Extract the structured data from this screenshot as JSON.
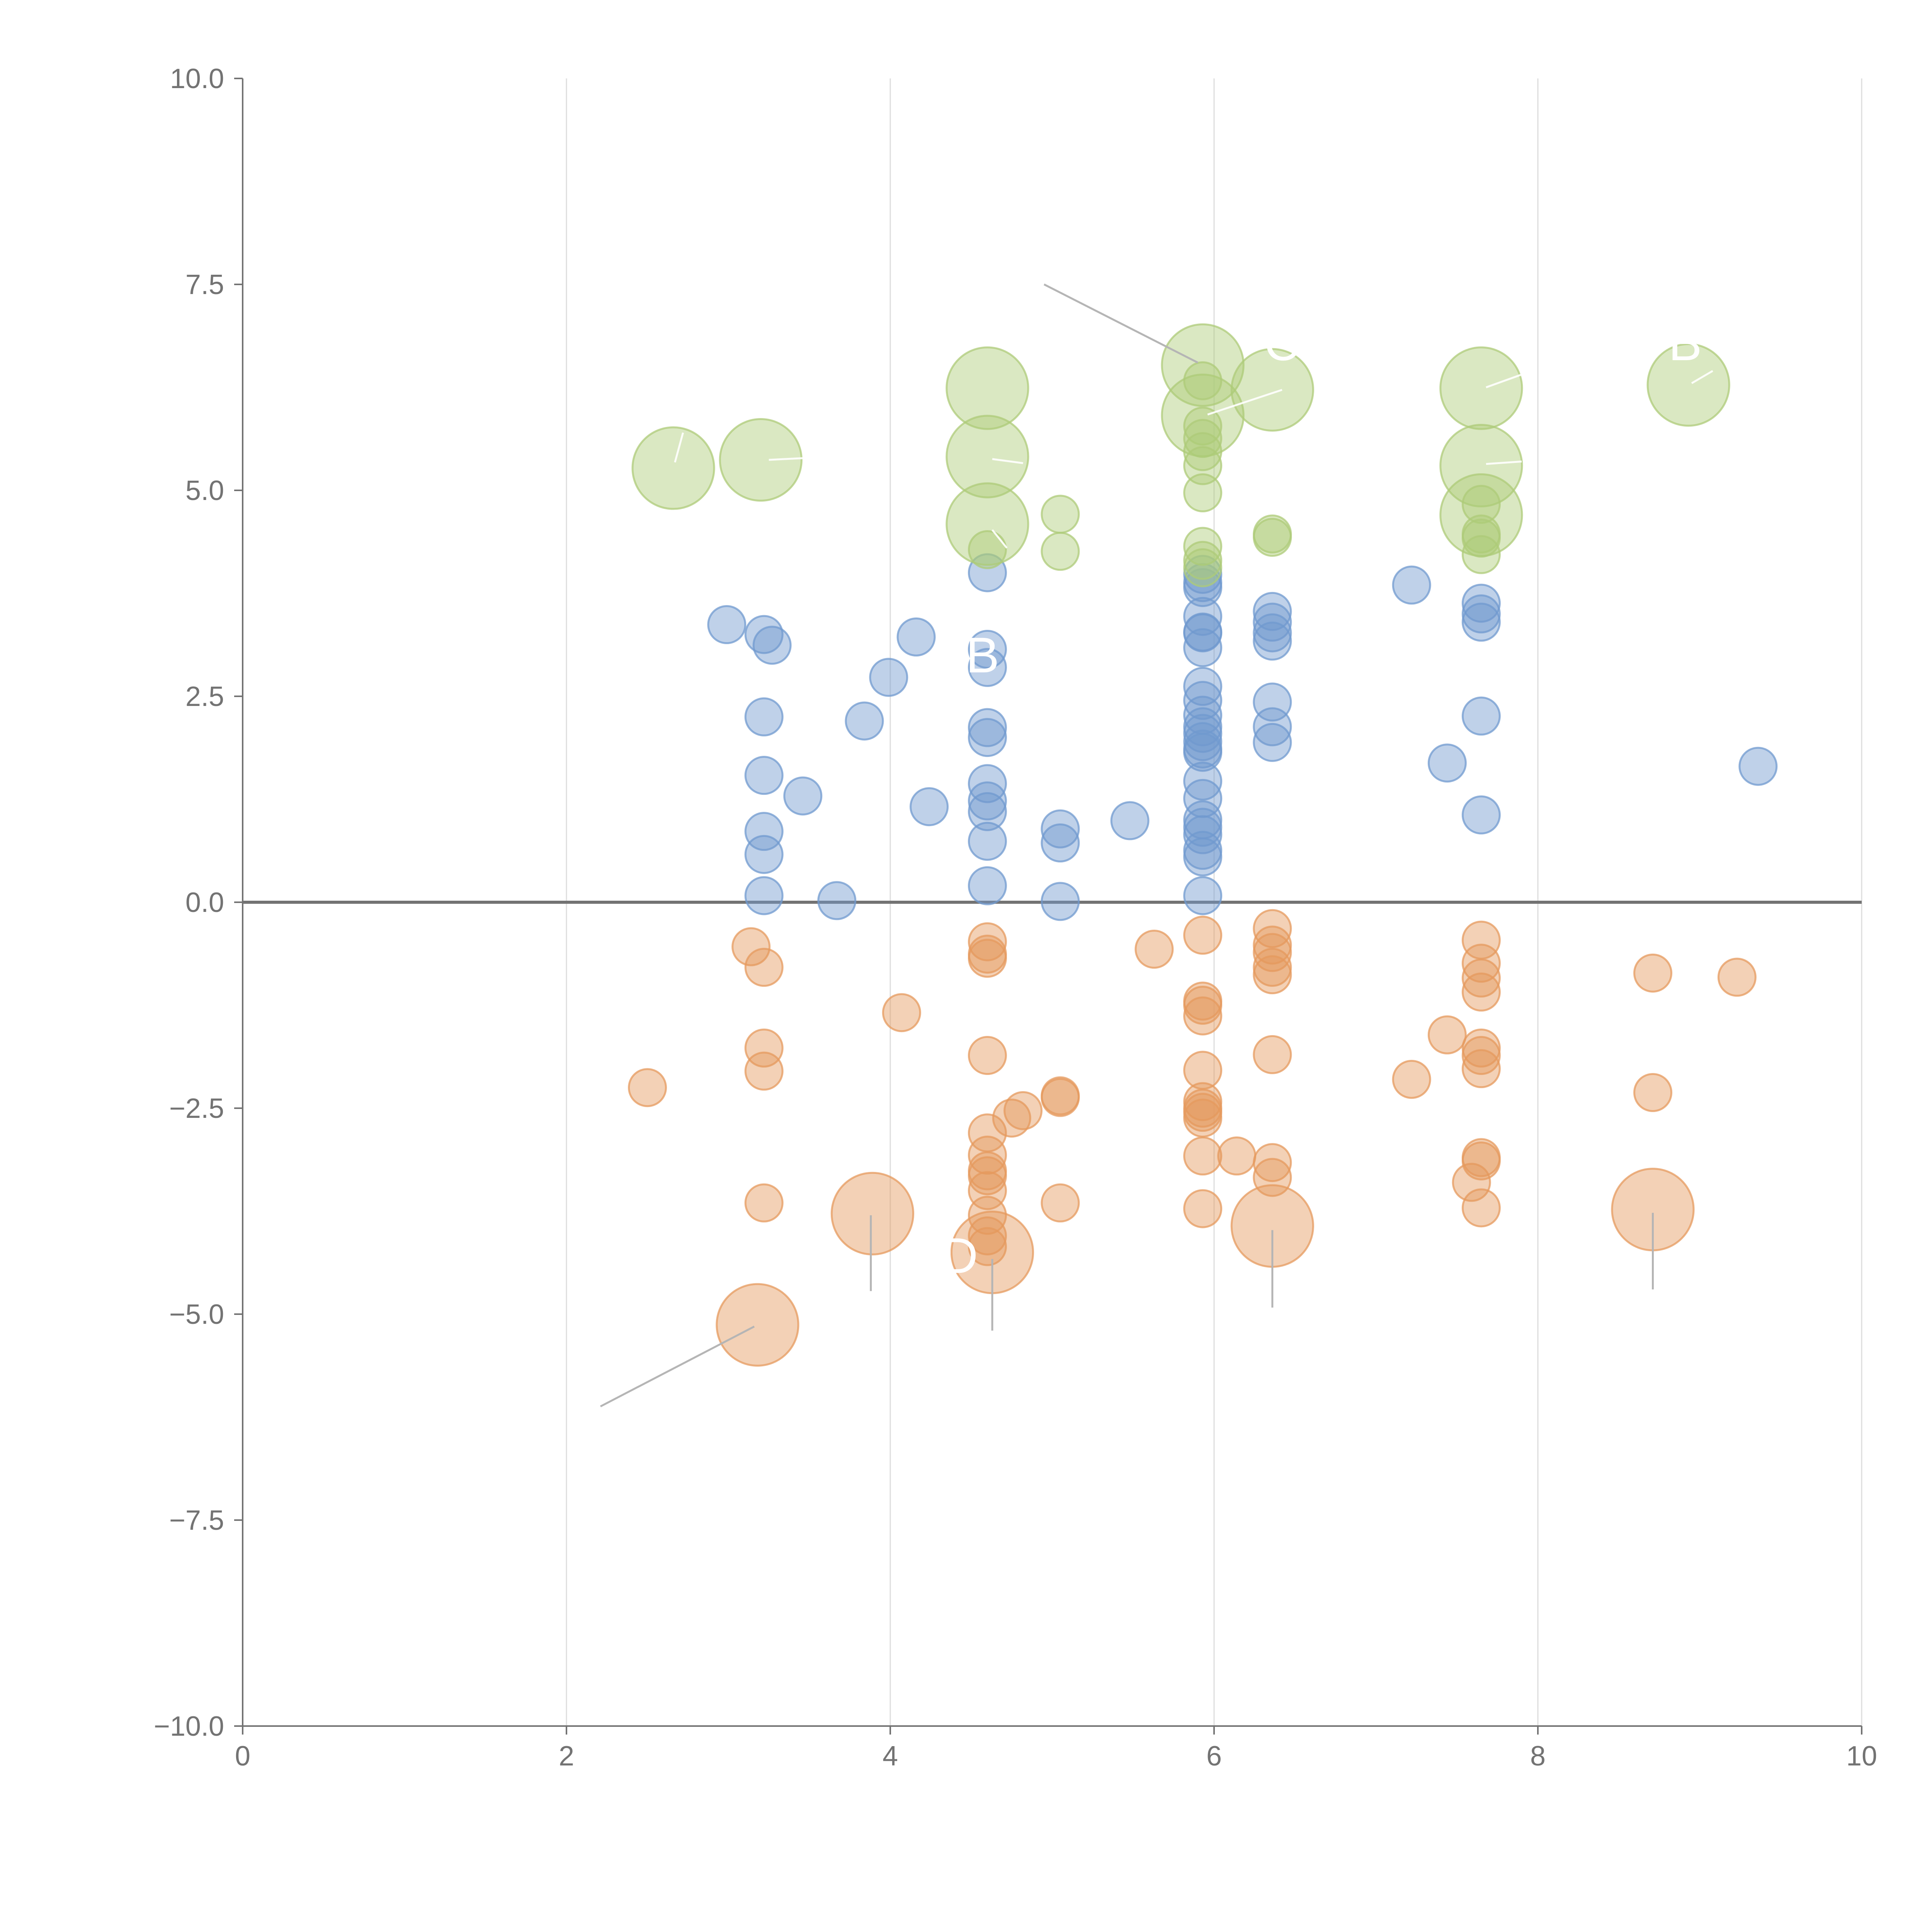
{
  "chart_data": {
    "type": "scatter",
    "title": "",
    "xlabel": "",
    "ylabel": "",
    "xlim": [
      0,
      10
    ],
    "ylim": [
      -10,
      10
    ],
    "x_ticks": [
      0,
      2,
      4,
      6,
      8,
      10
    ],
    "y_ticks": [
      10,
      7.5,
      5,
      2.5,
      0,
      -2.5,
      -5,
      -7.5,
      -10
    ],
    "x_tick_labels": [
      "0",
      "2",
      "4",
      "6",
      "8",
      "10"
    ],
    "y_tick_labels": [
      "10.0",
      "7.5",
      "5.0",
      "2.5",
      "0.0",
      "−2.5",
      "−5.0",
      "−7.5",
      "−10.0"
    ],
    "grid": "vertical lines at x ticks",
    "reference_line_y": 0,
    "colors": {
      "blue": "#7099cf",
      "orange": "#e59a5e",
      "green": "#aecb78",
      "axis": "#737373",
      "grid": "#dddddd",
      "leader": "#b5b5b5"
    },
    "series": [
      {
        "name": "blue",
        "color": "#7099cf",
        "points": [
          {
            "x": 2.99,
            "y": 3.37,
            "r": 1
          },
          {
            "x": 3.22,
            "y": 3.25,
            "r": 1
          },
          {
            "x": 3.27,
            "y": 3.12,
            "r": 1
          },
          {
            "x": 3.22,
            "y": 2.25,
            "r": 1
          },
          {
            "x": 3.22,
            "y": 1.54,
            "r": 1
          },
          {
            "x": 3.22,
            "y": 0.86,
            "r": 1
          },
          {
            "x": 3.22,
            "y": 0.58,
            "r": 1
          },
          {
            "x": 3.22,
            "y": 0.08,
            "r": 1
          },
          {
            "x": 3.46,
            "y": 1.29,
            "r": 1
          },
          {
            "x": 3.67,
            "y": 0.02,
            "r": 1
          },
          {
            "x": 3.84,
            "y": 2.2,
            "r": 1
          },
          {
            "x": 3.99,
            "y": 2.73,
            "r": 1
          },
          {
            "x": 4.16,
            "y": 3.22,
            "r": 1
          },
          {
            "x": 4.24,
            "y": 1.16,
            "r": 1
          },
          {
            "x": 4.6,
            "y": 4.0,
            "r": 1
          },
          {
            "x": 4.6,
            "y": 3.07,
            "r": 1
          },
          {
            "x": 4.6,
            "y": 2.85,
            "r": 1
          },
          {
            "x": 4.6,
            "y": 2.12,
            "r": 1
          },
          {
            "x": 4.6,
            "y": 2.0,
            "r": 1
          },
          {
            "x": 4.6,
            "y": 1.44,
            "r": 1
          },
          {
            "x": 4.6,
            "y": 1.23,
            "r": 1
          },
          {
            "x": 4.6,
            "y": 1.1,
            "r": 1
          },
          {
            "x": 4.6,
            "y": 0.74,
            "r": 1
          },
          {
            "x": 4.6,
            "y": 0.2,
            "r": 1
          },
          {
            "x": 5.05,
            "y": 0.89,
            "r": 1
          },
          {
            "x": 5.05,
            "y": 0.72,
            "r": 1
          },
          {
            "x": 5.05,
            "y": 0.01,
            "r": 1
          },
          {
            "x": 5.48,
            "y": 0.99,
            "r": 1
          },
          {
            "x": 5.93,
            "y": 3.98,
            "r": 1
          },
          {
            "x": 5.93,
            "y": 3.88,
            "r": 1
          },
          {
            "x": 5.93,
            "y": 3.82,
            "r": 1
          },
          {
            "x": 5.93,
            "y": 3.47,
            "r": 1
          },
          {
            "x": 5.93,
            "y": 3.28,
            "r": 1
          },
          {
            "x": 5.93,
            "y": 3.27,
            "r": 1
          },
          {
            "x": 5.93,
            "y": 3.09,
            "r": 1
          },
          {
            "x": 5.93,
            "y": 2.62,
            "r": 1
          },
          {
            "x": 5.93,
            "y": 2.45,
            "r": 1
          },
          {
            "x": 5.93,
            "y": 2.27,
            "r": 1
          },
          {
            "x": 5.93,
            "y": 2.13,
            "r": 1
          },
          {
            "x": 5.93,
            "y": 2.05,
            "r": 1
          },
          {
            "x": 5.93,
            "y": 1.95,
            "r": 1
          },
          {
            "x": 5.93,
            "y": 1.86,
            "r": 1
          },
          {
            "x": 5.93,
            "y": 1.82,
            "r": 1
          },
          {
            "x": 5.93,
            "y": 1.47,
            "r": 1
          },
          {
            "x": 5.93,
            "y": 1.26,
            "r": 1
          },
          {
            "x": 5.93,
            "y": 1.0,
            "r": 1
          },
          {
            "x": 5.93,
            "y": 0.91,
            "r": 1
          },
          {
            "x": 5.93,
            "y": 0.82,
            "r": 1
          },
          {
            "x": 5.93,
            "y": 0.63,
            "r": 1
          },
          {
            "x": 5.93,
            "y": 0.55,
            "r": 1
          },
          {
            "x": 5.93,
            "y": 0.08,
            "r": 1
          },
          {
            "x": 6.36,
            "y": 3.53,
            "r": 1
          },
          {
            "x": 6.36,
            "y": 3.4,
            "r": 1
          },
          {
            "x": 6.36,
            "y": 3.27,
            "r": 1
          },
          {
            "x": 6.36,
            "y": 3.17,
            "r": 1
          },
          {
            "x": 6.36,
            "y": 2.43,
            "r": 1
          },
          {
            "x": 6.36,
            "y": 2.13,
            "r": 1
          },
          {
            "x": 6.36,
            "y": 1.94,
            "r": 1
          },
          {
            "x": 7.22,
            "y": 3.85,
            "r": 1
          },
          {
            "x": 7.44,
            "y": 1.69,
            "r": 1
          },
          {
            "x": 7.65,
            "y": 3.63,
            "r": 1
          },
          {
            "x": 7.65,
            "y": 3.5,
            "r": 1
          },
          {
            "x": 7.65,
            "y": 3.4,
            "r": 1
          },
          {
            "x": 7.65,
            "y": 2.26,
            "r": 1
          },
          {
            "x": 7.65,
            "y": 1.06,
            "r": 1
          },
          {
            "x": 9.36,
            "y": 1.65,
            "r": 1
          }
        ]
      },
      {
        "name": "orange",
        "color": "#e59a5e",
        "points": [
          {
            "x": 2.5,
            "y": -2.25,
            "r": 1
          },
          {
            "x": 3.14,
            "y": -0.54,
            "r": 1
          },
          {
            "x": 3.22,
            "y": -0.79,
            "r": 1
          },
          {
            "x": 3.22,
            "y": -1.77,
            "r": 1
          },
          {
            "x": 3.22,
            "y": -2.05,
            "r": 1
          },
          {
            "x": 3.22,
            "y": -3.65,
            "r": 1
          },
          {
            "x": 3.18,
            "y": -5.13,
            "r": 2.2
          },
          {
            "x": 3.89,
            "y": -3.78,
            "r": 2.2
          },
          {
            "x": 4.07,
            "y": -1.34,
            "r": 1
          },
          {
            "x": 4.6,
            "y": -0.48,
            "r": 1
          },
          {
            "x": 4.6,
            "y": -0.63,
            "r": 1
          },
          {
            "x": 4.6,
            "y": -0.68,
            "r": 1
          },
          {
            "x": 4.6,
            "y": -1.86,
            "r": 1
          },
          {
            "x": 4.6,
            "y": -2.8,
            "r": 1
          },
          {
            "x": 4.6,
            "y": -3.07,
            "r": 1
          },
          {
            "x": 4.6,
            "y": -3.26,
            "r": 1
          },
          {
            "x": 4.6,
            "y": -3.32,
            "r": 1
          },
          {
            "x": 4.6,
            "y": -3.5,
            "r": 1
          },
          {
            "x": 4.6,
            "y": -3.8,
            "r": 1
          },
          {
            "x": 4.6,
            "y": -4.05,
            "r": 1
          },
          {
            "x": 4.6,
            "y": -4.18,
            "r": 1
          },
          {
            "x": 4.63,
            "y": -4.25,
            "r": 2.2
          },
          {
            "x": 4.75,
            "y": -2.62,
            "r": 1
          },
          {
            "x": 4.82,
            "y": -2.53,
            "r": 1
          },
          {
            "x": 5.05,
            "y": -2.35,
            "r": 1
          },
          {
            "x": 5.05,
            "y": -2.37,
            "r": 1
          },
          {
            "x": 5.05,
            "y": -3.65,
            "r": 1
          },
          {
            "x": 5.63,
            "y": -0.57,
            "r": 1
          },
          {
            "x": 5.93,
            "y": -0.4,
            "r": 1
          },
          {
            "x": 5.93,
            "y": -1.2,
            "r": 1
          },
          {
            "x": 5.93,
            "y": -1.25,
            "r": 1
          },
          {
            "x": 5.93,
            "y": -1.38,
            "r": 1
          },
          {
            "x": 5.93,
            "y": -2.04,
            "r": 1
          },
          {
            "x": 5.93,
            "y": -2.42,
            "r": 1
          },
          {
            "x": 5.93,
            "y": -2.5,
            "r": 1
          },
          {
            "x": 5.93,
            "y": -2.55,
            "r": 1
          },
          {
            "x": 5.93,
            "y": -2.62,
            "r": 1
          },
          {
            "x": 5.93,
            "y": -3.08,
            "r": 1
          },
          {
            "x": 5.93,
            "y": -3.72,
            "r": 1
          },
          {
            "x": 6.14,
            "y": -3.08,
            "r": 1
          },
          {
            "x": 6.36,
            "y": -0.32,
            "r": 1
          },
          {
            "x": 6.36,
            "y": -0.52,
            "r": 1
          },
          {
            "x": 6.36,
            "y": -0.61,
            "r": 1
          },
          {
            "x": 6.36,
            "y": -0.79,
            "r": 1
          },
          {
            "x": 6.36,
            "y": -0.88,
            "r": 1
          },
          {
            "x": 6.36,
            "y": -1.85,
            "r": 1
          },
          {
            "x": 6.36,
            "y": -3.16,
            "r": 1
          },
          {
            "x": 6.36,
            "y": -3.34,
            "r": 1
          },
          {
            "x": 6.36,
            "y": -3.93,
            "r": 2.2
          },
          {
            "x": 7.22,
            "y": -2.15,
            "r": 1
          },
          {
            "x": 7.44,
            "y": -1.61,
            "r": 1
          },
          {
            "x": 7.59,
            "y": -3.4,
            "r": 1
          },
          {
            "x": 7.65,
            "y": -0.46,
            "r": 1
          },
          {
            "x": 7.65,
            "y": -0.74,
            "r": 1
          },
          {
            "x": 7.65,
            "y": -0.92,
            "r": 1
          },
          {
            "x": 7.65,
            "y": -1.09,
            "r": 1
          },
          {
            "x": 7.65,
            "y": -1.77,
            "r": 1
          },
          {
            "x": 7.65,
            "y": -1.86,
            "r": 1
          },
          {
            "x": 7.65,
            "y": -2.02,
            "r": 1
          },
          {
            "x": 7.65,
            "y": -3.1,
            "r": 1
          },
          {
            "x": 7.65,
            "y": -3.14,
            "r": 1
          },
          {
            "x": 7.65,
            "y": -3.71,
            "r": 1
          },
          {
            "x": 8.71,
            "y": -0.86,
            "r": 1
          },
          {
            "x": 8.71,
            "y": -2.31,
            "r": 1
          },
          {
            "x": 8.71,
            "y": -3.73,
            "r": 2.2
          },
          {
            "x": 9.23,
            "y": -0.91,
            "r": 1
          }
        ]
      },
      {
        "name": "green",
        "color": "#aecb78",
        "points": [
          {
            "x": 2.66,
            "y": 5.27,
            "r": 2.2
          },
          {
            "x": 3.2,
            "y": 5.37,
            "r": 2.2
          },
          {
            "x": 4.6,
            "y": 6.24,
            "r": 2.2
          },
          {
            "x": 4.6,
            "y": 5.41,
            "r": 2.2
          },
          {
            "x": 4.6,
            "y": 4.59,
            "r": 2.2
          },
          {
            "x": 4.6,
            "y": 4.28,
            "r": 1
          },
          {
            "x": 5.05,
            "y": 4.71,
            "r": 1
          },
          {
            "x": 5.05,
            "y": 4.26,
            "r": 1
          },
          {
            "x": 5.93,
            "y": 6.52,
            "r": 2.2
          },
          {
            "x": 5.93,
            "y": 5.91,
            "r": 2.2
          },
          {
            "x": 5.93,
            "y": 6.33,
            "r": 1
          },
          {
            "x": 5.93,
            "y": 5.78,
            "r": 1
          },
          {
            "x": 5.93,
            "y": 5.63,
            "r": 1
          },
          {
            "x": 5.93,
            "y": 5.47,
            "r": 1
          },
          {
            "x": 5.93,
            "y": 5.3,
            "r": 1
          },
          {
            "x": 5.93,
            "y": 4.97,
            "r": 1
          },
          {
            "x": 5.93,
            "y": 4.32,
            "r": 1
          },
          {
            "x": 5.93,
            "y": 4.15,
            "r": 1
          },
          {
            "x": 5.93,
            "y": 4.06,
            "r": 1
          },
          {
            "x": 6.36,
            "y": 6.22,
            "r": 2.2
          },
          {
            "x": 6.36,
            "y": 4.47,
            "r": 1
          },
          {
            "x": 6.36,
            "y": 4.43,
            "r": 1
          },
          {
            "x": 7.65,
            "y": 6.24,
            "r": 2.2
          },
          {
            "x": 7.65,
            "y": 5.3,
            "r": 2.2
          },
          {
            "x": 7.65,
            "y": 4.7,
            "r": 2.2
          },
          {
            "x": 7.65,
            "y": 4.83,
            "r": 1
          },
          {
            "x": 7.65,
            "y": 4.47,
            "r": 1
          },
          {
            "x": 7.65,
            "y": 4.42,
            "r": 1
          },
          {
            "x": 7.65,
            "y": 4.22,
            "r": 1
          },
          {
            "x": 8.93,
            "y": 6.28,
            "r": 2.2
          }
        ]
      }
    ],
    "annotations": [
      {
        "text": "B",
        "x": 4.57,
        "y": 2.79,
        "color": "#ffffff"
      },
      {
        "text": "D",
        "x": 4.43,
        "y": -4.5,
        "color": "#ffffff"
      },
      {
        "text": "C",
        "x": 6.42,
        "y": 6.58,
        "color": "#ffffff"
      },
      {
        "text": "B",
        "x": 8.91,
        "y": 6.58,
        "color": "#ffffff"
      }
    ],
    "leader_lines": [
      {
        "x1": 4.95,
        "y1": 7.5,
        "x2": 5.9,
        "y2": 6.55,
        "color": "#b5b5b5"
      },
      {
        "x1": 2.21,
        "y1": -6.12,
        "x2": 3.16,
        "y2": -5.15,
        "color": "#b5b5b5"
      },
      {
        "x1": 3.88,
        "y1": -3.8,
        "x2": 3.88,
        "y2": -4.72,
        "color": "#b5b5b5"
      },
      {
        "x1": 4.63,
        "y1": -4.33,
        "x2": 4.63,
        "y2": -5.2,
        "color": "#b5b5b5"
      },
      {
        "x1": 6.36,
        "y1": -3.98,
        "x2": 6.36,
        "y2": -4.92,
        "color": "#b5b5b5"
      },
      {
        "x1": 8.71,
        "y1": -3.77,
        "x2": 8.71,
        "y2": -4.7,
        "color": "#b5b5b5"
      },
      {
        "x1": 2.67,
        "y1": 5.34,
        "x2": 2.72,
        "y2": 5.7,
        "color": "#ffffff"
      },
      {
        "x1": 3.25,
        "y1": 5.37,
        "x2": 3.55,
        "y2": 5.4,
        "color": "#ffffff"
      },
      {
        "x1": 4.63,
        "y1": 5.38,
        "x2": 4.82,
        "y2": 5.33,
        "color": "#ffffff"
      },
      {
        "x1": 4.63,
        "y1": 4.52,
        "x2": 4.72,
        "y2": 4.3,
        "color": "#ffffff"
      },
      {
        "x1": 5.96,
        "y1": 5.92,
        "x2": 6.42,
        "y2": 6.22,
        "color": "#ffffff"
      },
      {
        "x1": 7.68,
        "y1": 6.25,
        "x2": 7.92,
        "y2": 6.42,
        "color": "#ffffff"
      },
      {
        "x1": 7.68,
        "y1": 5.32,
        "x2": 7.9,
        "y2": 5.35,
        "color": "#ffffff"
      },
      {
        "x1": 8.95,
        "y1": 6.3,
        "x2": 9.08,
        "y2": 6.45,
        "color": "#ffffff"
      }
    ]
  }
}
